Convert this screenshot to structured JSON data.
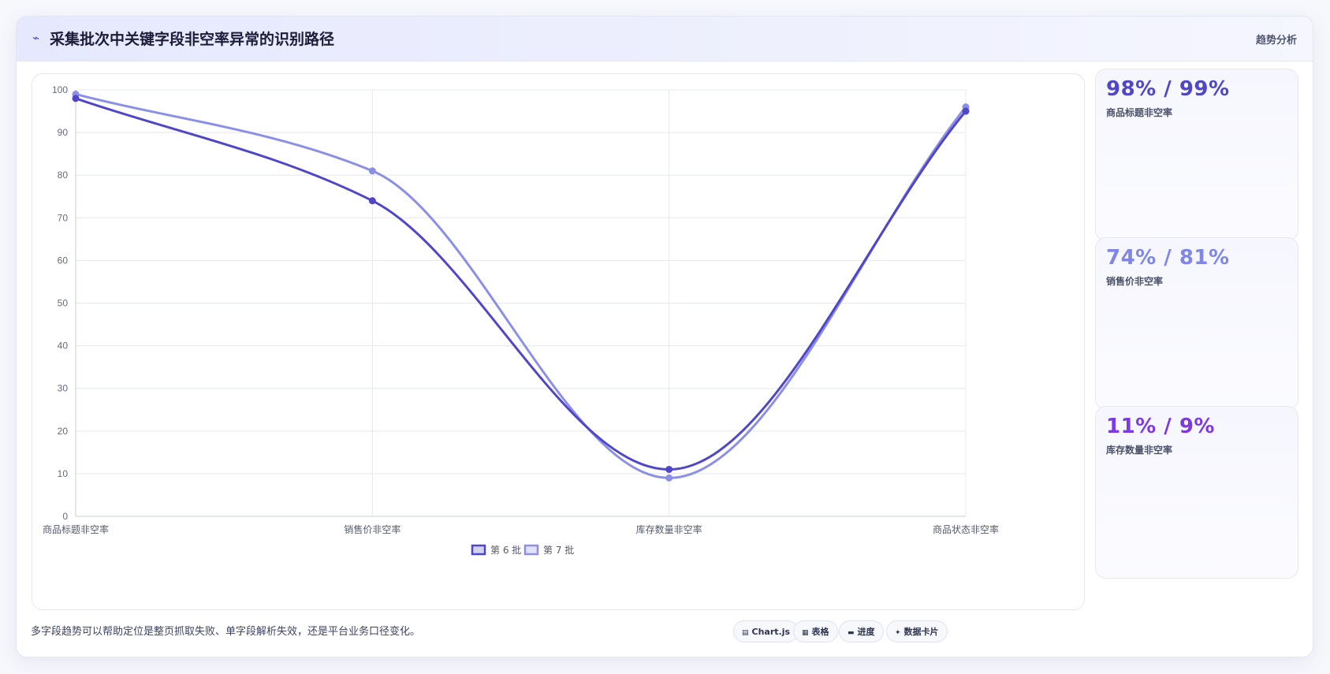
{
  "header": {
    "title": "采集批次中关键字段非空率异常的识别路径",
    "tag": "趋势分析"
  },
  "chart_data": {
    "type": "line",
    "categories": [
      "商品标题非空率",
      "销售价非空率",
      "库存数量非空率",
      "商品状态非空率"
    ],
    "series": [
      {
        "name": "第 6 批",
        "values": [
          98,
          74,
          11,
          95
        ],
        "color": "#4f46c8"
      },
      {
        "name": "第 7 批",
        "values": [
          99,
          81,
          9,
          96
        ],
        "color": "#8b90e6"
      }
    ],
    "ylim": [
      0,
      100
    ],
    "yticks": [
      "0",
      "10",
      "20",
      "30",
      "40",
      "50",
      "60",
      "70",
      "80",
      "90",
      "100"
    ],
    "grid": true,
    "legend": "bottom-center"
  },
  "cards": [
    {
      "value": "98% / 99%",
      "label": "商品标题非空率",
      "color": "#4f46c8"
    },
    {
      "value": "74% / 81%",
      "label": "销售价非空率",
      "color": "#7f86e6"
    },
    {
      "value": "11% / 9%",
      "label": "库存数量非空率",
      "color": "#7c3ae0"
    }
  ],
  "footer": {
    "note": "多字段趋势可以帮助定位是整页抓取失败、单字段解析失效，还是平台业务口径变化。",
    "chips": [
      {
        "icon": "▤",
        "label": "Chart.js",
        "icon_name": "chart-icon"
      },
      {
        "icon": "▦",
        "label": "表格",
        "icon_name": "table-icon"
      },
      {
        "icon": "▬",
        "label": "进度",
        "icon_name": "progress-icon"
      },
      {
        "icon": "✦",
        "label": "数据卡片",
        "icon_name": "sparkle-icon"
      }
    ]
  }
}
